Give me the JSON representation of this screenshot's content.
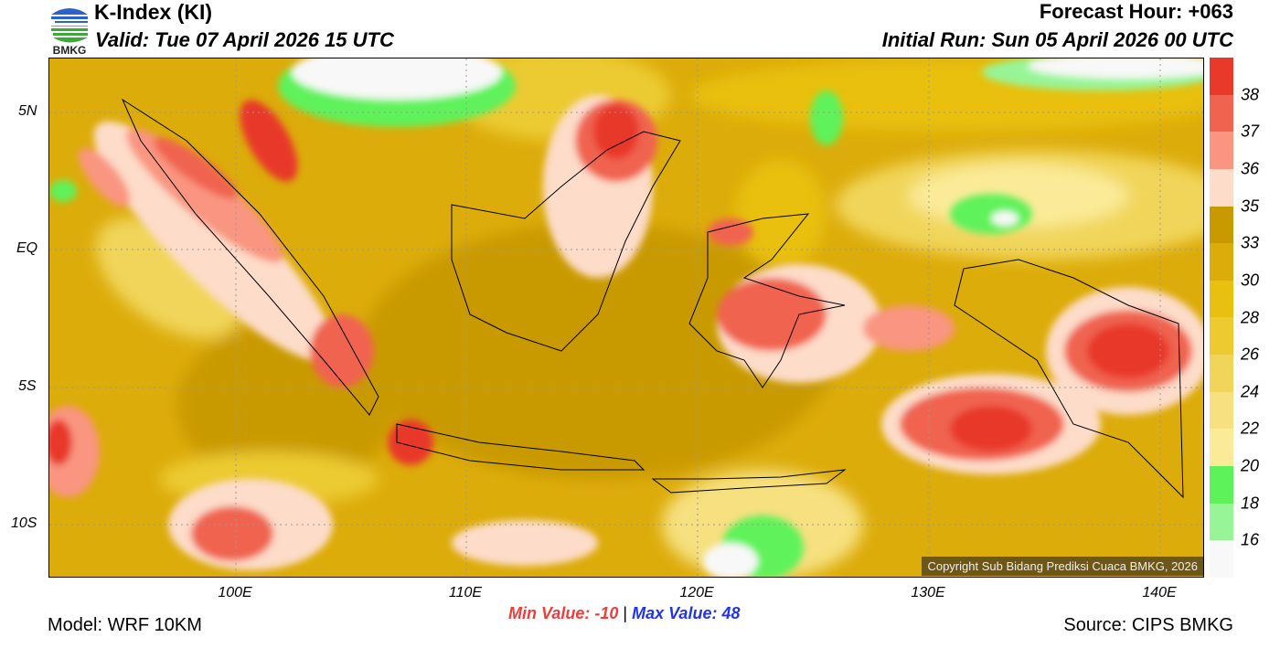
{
  "header": {
    "logo_text": "BMKG",
    "title": "K-Index (KI)",
    "valid": "Valid: Tue 07 April 2026 15 UTC",
    "forecast_hour": "Forecast Hour: +063",
    "initial_run": "Initial Run: Sun 05 April 2026 00 UTC"
  },
  "axes": {
    "lat_ticks": [
      "5N",
      "EQ",
      "5S",
      "10S"
    ],
    "lon_ticks": [
      "100E",
      "110E",
      "120E",
      "130E",
      "140E"
    ]
  },
  "colorbar": {
    "labels": [
      "38",
      "37",
      "36",
      "35",
      "33",
      "30",
      "28",
      "26",
      "24",
      "22",
      "20",
      "18",
      "16"
    ],
    "colors": [
      "#e8392a",
      "#f0644f",
      "#f99580",
      "#fddcc9",
      "#c99a00",
      "#dcac0a",
      "#e8c010",
      "#ecca30",
      "#f1d55a",
      "#f6e07f",
      "#fbeb98",
      "#5ef25a",
      "#97f597",
      "#f8f8f8"
    ]
  },
  "footer": {
    "min_value": "Min Value: -10",
    "separator": "|",
    "max_value": "Max Value:  48",
    "model": "Model: WRF 10KM",
    "source": "Source: CIPS BMKG",
    "copyright": "Copyright Sub Bidang Prediksi Cuaca BMKG, 2026"
  }
}
